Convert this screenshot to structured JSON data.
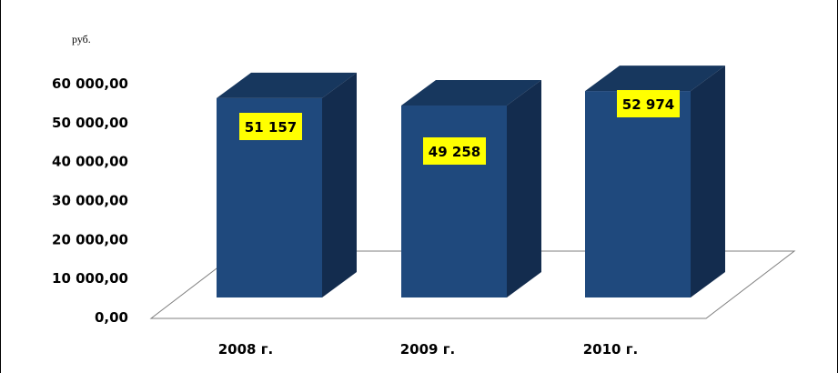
{
  "chart_data": {
    "type": "bar",
    "style": "3d-column",
    "unit_label": "руб.",
    "categories": [
      "2008 г.",
      "2009 г.",
      "2010 г."
    ],
    "values": [
      51157,
      49258,
      52974
    ],
    "data_labels": [
      "51 157",
      "49 258",
      "52 974"
    ],
    "yticks": [
      "0,00",
      "10 000,00",
      "20 000,00",
      "30 000,00",
      "40 000,00",
      "50 000,00",
      "60 000,00"
    ],
    "ylim": [
      0,
      60000
    ],
    "grid": false,
    "legend": "none",
    "colors": {
      "bar_front": "#1F497D",
      "bar_top": "#17375E",
      "bar_side": "#132C4E",
      "label_bg": "#FFFF00",
      "floor_line": "#7F7F7F"
    }
  }
}
